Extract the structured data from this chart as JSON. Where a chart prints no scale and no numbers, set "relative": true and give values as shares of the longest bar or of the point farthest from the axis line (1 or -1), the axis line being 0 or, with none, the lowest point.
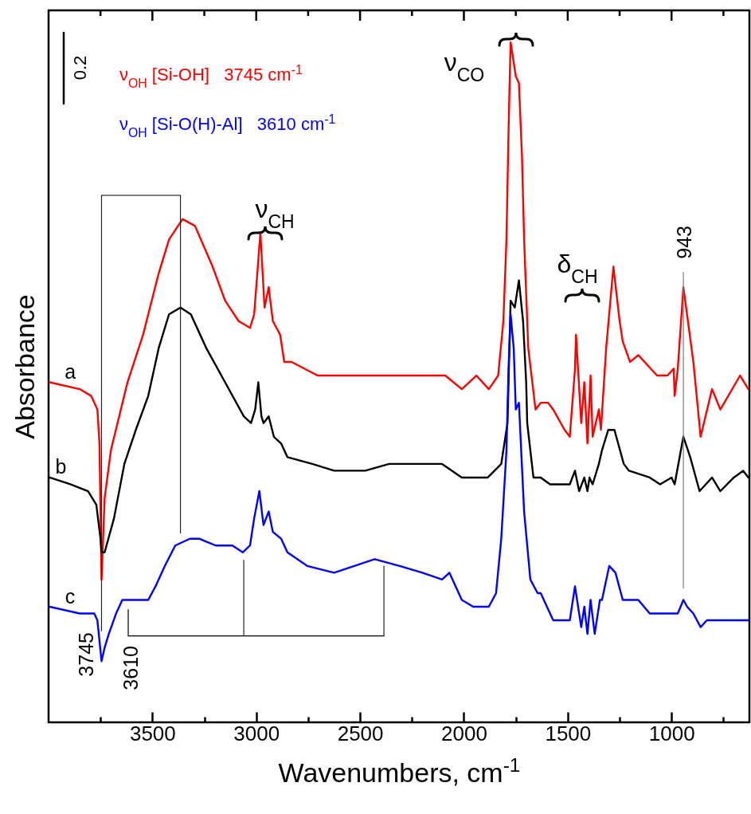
{
  "chart_data": {
    "type": "line",
    "relative": true,
    "xlabel": "Wavenumbers, cm$^{-1}$",
    "ylabel": "Absorbance",
    "xlim": [
      4000,
      625
    ],
    "xticks": [
      {
        "value": 3750,
        "label": null
      },
      3500,
      {
        "value": 3250,
        "label": null
      },
      3000,
      {
        "value": 2750,
        "label": null
      },
      2500,
      {
        "value": 2250,
        "label": null
      },
      2000,
      {
        "value": 1750,
        "label": null
      },
      1500,
      {
        "value": 1250,
        "label": null
      },
      1000,
      {
        "value": 750,
        "label": null
      }
    ],
    "series": [
      {
        "name": "a",
        "color": "#ff0000",
        "x": [
          3995,
          3850,
          3795,
          3765,
          3755,
          3750,
          3745,
          3730,
          3700,
          3620,
          3545,
          3470,
          3420,
          3355,
          3295,
          3210,
          3150,
          3085,
          3030,
          3010,
          2980,
          2960,
          2940,
          2920,
          2885,
          2865,
          2830,
          2705,
          2615,
          2425,
          2090,
          2050,
          2010,
          1940,
          1880,
          1835,
          1810,
          1795,
          1785,
          1775,
          1750,
          1735,
          1720,
          1710,
          1690,
          1655,
          1630,
          1595,
          1570,
          1515,
          1490,
          1465,
          1460,
          1435,
          1420,
          1405,
          1390,
          1380,
          1350,
          1340,
          1315,
          1280,
          1250,
          1235,
          1200,
          1160,
          1070,
          1020,
          990,
          985,
          970,
          943,
          895,
          860,
          805,
          765,
          670,
          630
        ],
        "values": [
          0.5,
          0.49,
          0.48,
          0.46,
          0.41,
          0.31,
          0.21,
          0.33,
          0.4,
          0.5,
          0.57,
          0.66,
          0.71,
          0.74,
          0.73,
          0.67,
          0.62,
          0.59,
          0.58,
          0.6,
          0.72,
          0.61,
          0.64,
          0.59,
          0.57,
          0.53,
          0.53,
          0.51,
          0.51,
          0.51,
          0.51,
          0.5,
          0.49,
          0.51,
          0.49,
          0.51,
          0.59,
          0.71,
          0.87,
          1.0,
          0.95,
          0.94,
          0.83,
          0.71,
          0.55,
          0.46,
          0.47,
          0.47,
          0.46,
          0.43,
          0.42,
          0.52,
          0.57,
          0.44,
          0.5,
          0.41,
          0.51,
          0.42,
          0.46,
          0.43,
          0.55,
          0.67,
          0.59,
          0.56,
          0.53,
          0.54,
          0.51,
          0.51,
          0.52,
          0.48,
          0.52,
          0.64,
          0.53,
          0.42,
          0.49,
          0.46,
          0.51,
          0.49
        ]
      },
      {
        "name": "b",
        "color": "#000000",
        "x": [
          3995,
          3895,
          3810,
          3770,
          3750,
          3745,
          3730,
          3685,
          3635,
          3580,
          3520,
          3470,
          3420,
          3365,
          3315,
          3240,
          3150,
          3060,
          3025,
          3005,
          2990,
          2975,
          2965,
          2940,
          2915,
          2880,
          2850,
          2730,
          2625,
          2475,
          2360,
          2105,
          2010,
          1885,
          1820,
          1790,
          1775,
          1755,
          1735,
          1715,
          1700,
          1695,
          1665,
          1630,
          1585,
          1490,
          1465,
          1445,
          1420,
          1405,
          1395,
          1380,
          1350,
          1335,
          1305,
          1275,
          1230,
          1205,
          1105,
          1055,
          1000,
          985,
          943,
          910,
          865,
          805,
          765,
          700,
          655,
          630
        ],
        "values": [
          0.36,
          0.35,
          0.34,
          0.32,
          0.27,
          0.25,
          0.25,
          0.3,
          0.38,
          0.43,
          0.48,
          0.55,
          0.6,
          0.61,
          0.6,
          0.55,
          0.5,
          0.45,
          0.44,
          0.46,
          0.5,
          0.45,
          0.44,
          0.45,
          0.42,
          0.41,
          0.39,
          0.38,
          0.37,
          0.37,
          0.38,
          0.38,
          0.36,
          0.36,
          0.38,
          0.44,
          0.62,
          0.61,
          0.65,
          0.59,
          0.5,
          0.44,
          0.36,
          0.36,
          0.35,
          0.35,
          0.37,
          0.34,
          0.36,
          0.34,
          0.36,
          0.35,
          0.38,
          0.4,
          0.43,
          0.43,
          0.38,
          0.37,
          0.36,
          0.35,
          0.36,
          0.35,
          0.42,
          0.39,
          0.34,
          0.36,
          0.34,
          0.36,
          0.37,
          0.36
        ]
      },
      {
        "name": "c",
        "color": "#0000ff",
        "x": [
          3995,
          3850,
          3780,
          3765,
          3745,
          3730,
          3710,
          3675,
          3645,
          3605,
          3580,
          3520,
          3485,
          3440,
          3390,
          3320,
          3275,
          3195,
          3115,
          3065,
          3030,
          3010,
          2985,
          2965,
          2940,
          2920,
          2880,
          2850,
          2755,
          2625,
          2430,
          2310,
          2200,
          2105,
          2070,
          2010,
          1955,
          1880,
          1845,
          1820,
          1795,
          1785,
          1775,
          1760,
          1750,
          1735,
          1710,
          1680,
          1645,
          1630,
          1570,
          1490,
          1465,
          1435,
          1420,
          1405,
          1390,
          1370,
          1345,
          1335,
          1300,
          1270,
          1235,
          1160,
          1105,
          995,
          970,
          943,
          925,
          895,
          860,
          830,
          700,
          630
        ],
        "values": [
          0.17,
          0.16,
          0.16,
          0.15,
          0.09,
          0.11,
          0.13,
          0.16,
          0.18,
          0.18,
          0.18,
          0.18,
          0.2,
          0.23,
          0.26,
          0.27,
          0.27,
          0.26,
          0.26,
          0.25,
          0.26,
          0.3,
          0.34,
          0.29,
          0.31,
          0.28,
          0.27,
          0.25,
          0.23,
          0.22,
          0.24,
          0.23,
          0.22,
          0.21,
          0.22,
          0.18,
          0.17,
          0.17,
          0.19,
          0.27,
          0.4,
          0.52,
          0.6,
          0.55,
          0.46,
          0.47,
          0.31,
          0.21,
          0.19,
          0.19,
          0.15,
          0.15,
          0.2,
          0.14,
          0.17,
          0.13,
          0.18,
          0.13,
          0.18,
          0.18,
          0.23,
          0.22,
          0.18,
          0.18,
          0.16,
          0.16,
          0.16,
          0.18,
          0.17,
          0.16,
          0.14,
          0.15,
          0.15,
          0.15
        ]
      }
    ],
    "ref_lines": [
      {
        "axis": "x",
        "value": 3745
      },
      {
        "axis": "x",
        "value": 943
      },
      {
        "axis": "x",
        "value": 3365
      },
      {
        "axis": "x",
        "value": 3060
      },
      {
        "axis": "x",
        "value": 2385
      }
    ],
    "annotations": [
      "0.2",
      "ν$_{OH}$ [Si-OH]   3745 cm$^{-1}$",
      "ν$_{OH}$ [Si-O(H)-Al]   3610 cm$^{-1}$",
      "ν$_{CH}$",
      "ν$_{CO}$",
      "δ$_{CH}$",
      "3745",
      "3610",
      "943"
    ]
  }
}
